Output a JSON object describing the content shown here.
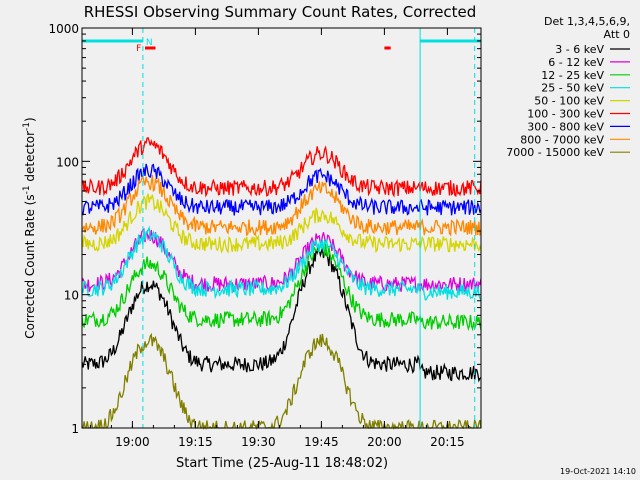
{
  "chart_data": {
    "type": "line",
    "title": "RHESSI Observing Summary Count Rates, Corrected",
    "xlabel": "Start Time (25-Aug-11 18:48:02)",
    "ylabel_main": "Corrected Count Rate (s",
    "ylabel_sup1": "-1",
    "ylabel_mid": " detector",
    "ylabel_sup2": "-1",
    "ylabel_end": ")",
    "footer": "19-Oct-2021 14:10",
    "y_scale": "log",
    "xlim_minutes": [
      0,
      95
    ],
    "ylim": [
      1,
      1000
    ],
    "x_ticks": [
      {
        "t": 12,
        "label": "19:00"
      },
      {
        "t": 27,
        "label": "19:15"
      },
      {
        "t": 42,
        "label": "19:30"
      },
      {
        "t": 57,
        "label": "19:45"
      },
      {
        "t": 72,
        "label": "20:00"
      },
      {
        "t": 87,
        "label": "20:15"
      }
    ],
    "y_ticks": [
      {
        "v": 1,
        "label": "1"
      },
      {
        "v": 10,
        "label": "10"
      },
      {
        "v": 100,
        "label": "100"
      },
      {
        "v": 1000,
        "label": "1000"
      }
    ],
    "legend_header": [
      "Det 1,3,4,5,6,9,",
      "Att 0"
    ],
    "legend_position": "right",
    "series": [
      {
        "name": "3 - 6 keV",
        "color": "#000000",
        "base": 3.0,
        "peaks": [
          [
            16,
            12
          ],
          [
            57,
            20
          ]
        ],
        "after_flag": 2.6
      },
      {
        "name": "6 - 12 keV",
        "color": "#dd00dd",
        "base": 12,
        "peaks": [
          [
            16,
            28
          ],
          [
            57,
            26
          ]
        ],
        "after_flag": 12
      },
      {
        "name": "12 - 25 keV",
        "color": "#00cc00",
        "base": 6.5,
        "peaks": [
          [
            16,
            17
          ],
          [
            57,
            22
          ]
        ],
        "after_flag": 6.2
      },
      {
        "name": "25 - 50 keV",
        "color": "#00e0e0",
        "base": 11,
        "peaks": [
          [
            16,
            28
          ],
          [
            57,
            24
          ]
        ],
        "after_flag": 10.5
      },
      {
        "name": "50 - 100 keV",
        "color": "#d4d400",
        "base": 24,
        "peaks": [
          [
            16,
            50
          ],
          [
            57,
            40
          ]
        ],
        "after_flag": 24
      },
      {
        "name": "100 - 300 keV",
        "color": "#ff0000",
        "base": 63,
        "peaks": [
          [
            16,
            135
          ],
          [
            57,
            115
          ]
        ],
        "after_flag": 63
      },
      {
        "name": "300 - 800 keV",
        "color": "#0000ff",
        "base": 45,
        "peaks": [
          [
            16,
            85
          ],
          [
            57,
            78
          ]
        ],
        "after_flag": 45
      },
      {
        "name": "800 - 7000 keV",
        "color": "#ff8800",
        "base": 32,
        "peaks": [
          [
            16,
            70
          ],
          [
            57,
            62
          ]
        ],
        "after_flag": 32
      },
      {
        "name": "7000 - 15000 keV",
        "color": "#808000",
        "base": 1.0,
        "peaks": [
          [
            16,
            4.5
          ],
          [
            57,
            4.5
          ]
        ],
        "after_flag": 1.0
      }
    ],
    "flags": [
      {
        "label": "F",
        "t": 13.5,
        "color": "#ff0000"
      },
      {
        "label": "N",
        "t": 16,
        "color": "#00e0e0"
      }
    ],
    "eclipse_bars": [
      [
        0,
        14.5
      ],
      [
        80.5,
        95
      ]
    ],
    "saa_ticks": [
      [
        15,
        17.5
      ],
      [
        72,
        73.5
      ]
    ],
    "dashed_markers": [
      14.5,
      80.5,
      93.5
    ]
  }
}
